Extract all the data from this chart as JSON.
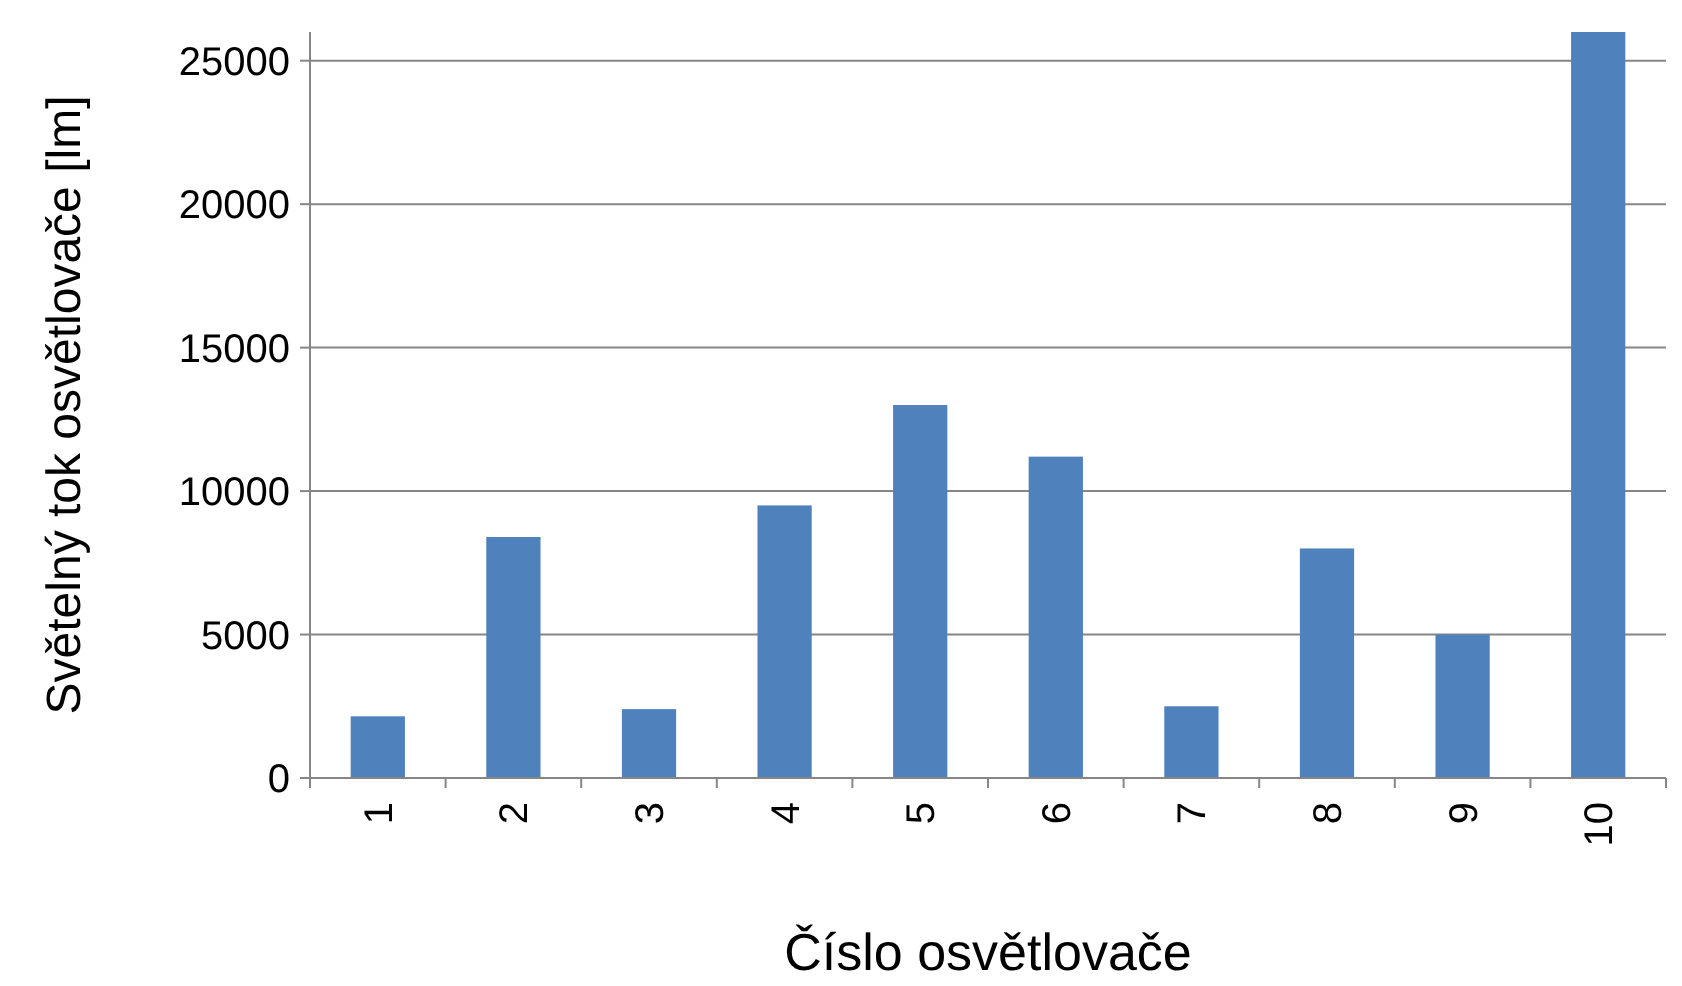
{
  "chart_data": {
    "type": "bar",
    "xlabel": "Číslo osvětlovače",
    "ylabel": "Světelný tok osvětlovače [lm]",
    "categories": [
      "1",
      "2",
      "3",
      "4",
      "5",
      "6",
      "7",
      "8",
      "9",
      "10"
    ],
    "values": [
      2150,
      8400,
      2400,
      9500,
      13000,
      11200,
      2500,
      8000,
      5000,
      26000
    ],
    "color": "#4f81bd",
    "ylim": [
      0,
      26000
    ],
    "yticks": [
      0,
      5000,
      10000,
      15000,
      20000,
      25000
    ],
    "grid": "y"
  }
}
